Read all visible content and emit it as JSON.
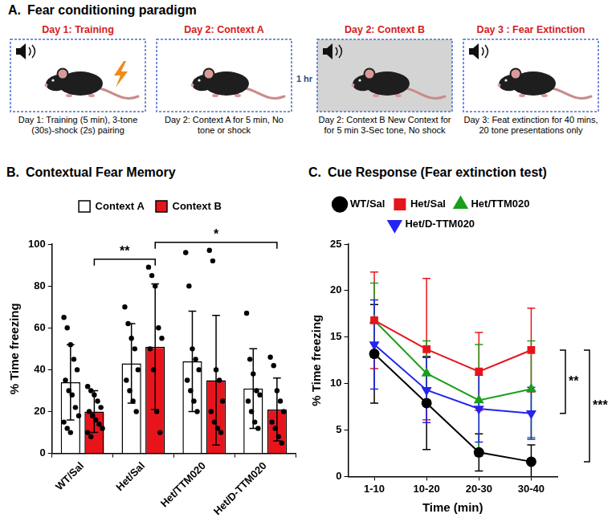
{
  "panel_a": {
    "panel_label": "A.",
    "title": "Fear conditioning paradigm",
    "steps": [
      {
        "heading": "Day 1: Training",
        "caption": "Day 1: Training (5 min), 3-tone (30s)-shock (2s) pairing",
        "tone": true,
        "shock": true,
        "color": "#ffffff"
      },
      {
        "heading": "Day 2: Context A",
        "caption": "Day 2: Context A for 5 min, No tone or shock",
        "tone": false,
        "shock": false,
        "color": "#ffffff"
      },
      {
        "interval": "1 hr"
      },
      {
        "heading": "Day 2: Context B",
        "caption": "Day 2: Context B New Context for for 5 min 3-Sec tone, No shock",
        "tone": true,
        "shock": false,
        "color": "#d4d4d4"
      },
      {
        "heading": "Day 3 : Fear Extinction",
        "caption": "Day 3: Feat extinction for 40 mins, 20 tone presentations only",
        "tone": true,
        "shock": false,
        "color": "#ffffff"
      }
    ]
  },
  "chart_data": [
    {
      "type": "bar",
      "panel_label": "B.",
      "title": "Contextual Fear Memory",
      "categories": [
        "WT/Sal",
        "Het/Sal",
        "Het/TTM020",
        "Het/D-TTM020"
      ],
      "series": [
        {
          "name": "Context A",
          "color": "#ffffff",
          "values": [
            34,
            43,
            44,
            31
          ],
          "errors": [
            18,
            19,
            24,
            19
          ],
          "points": [
            [
              65,
              60,
              52,
              45,
              40,
              35,
              30,
              28,
              22,
              18,
              15,
              12,
              10
            ],
            [
              70,
              62,
              55,
              50,
              40,
              35,
              30,
              25,
              20
            ],
            [
              96,
              80,
              50,
              45,
              40,
              35,
              30,
              25,
              20
            ],
            [
              67,
              45,
              38,
              30,
              28,
              25,
              20,
              15,
              12
            ]
          ]
        },
        {
          "name": "Context B",
          "color": "#e8141c",
          "values": [
            20,
            51,
            35,
            21
          ],
          "errors": [
            10,
            30,
            31,
            15
          ],
          "points": [
            [
              32,
              30,
              28,
              25,
              22,
              20,
              18,
              16,
              14,
              12,
              10,
              8
            ],
            [
              89,
              85,
              80,
              60,
              55,
              50,
              40,
              20,
              10
            ],
            [
              97,
              92,
              40,
              35,
              25,
              20,
              15,
              12,
              10
            ],
            [
              46,
              42,
              30,
              25,
              20,
              15,
              12,
              8,
              5
            ]
          ]
        }
      ],
      "y_label": "% Time freezing",
      "ylim": [
        0,
        100
      ],
      "yticks": [
        0,
        20,
        40,
        60,
        80,
        100
      ],
      "grid": false,
      "legend": "top",
      "annotations": [
        {
          "label": "**",
          "from": {
            "category": "WT/Sal",
            "series": "Context B"
          },
          "to": {
            "category": "Het/Sal",
            "series": "Context B"
          }
        },
        {
          "label": "*",
          "from": {
            "category": "Het/Sal",
            "series": "Context B"
          },
          "to": {
            "category": "Het/D-TTM020",
            "series": "Context B"
          }
        }
      ]
    },
    {
      "type": "line",
      "panel_label": "C.",
      "title": "Cue Response (Fear extinction test)",
      "categories": [
        "1-10",
        "10-20",
        "20-30",
        "30-40"
      ],
      "series": [
        {
          "name": "WT/Sal",
          "color": "#000000",
          "marker": "circle",
          "values": [
            13.2,
            7.9,
            2.6,
            1.6
          ],
          "errors": [
            5.3,
            5,
            2,
            1.8
          ]
        },
        {
          "name": "Het/Sal",
          "color": "#e8141c",
          "marker": "square",
          "values": [
            16.8,
            13.7,
            11.3,
            13.6
          ],
          "errors": [
            5.2,
            7.6,
            4.2,
            4.5
          ]
        },
        {
          "name": "Het/TTM020",
          "color": "#1a9e1a",
          "marker": "triangle",
          "values": [
            16.8,
            11.1,
            8.2,
            9.4
          ],
          "errors": [
            4,
            3.5,
            6,
            5.2
          ]
        },
        {
          "name": "Het/D-TTM020",
          "color": "#2424f0",
          "marker": "triangle-down",
          "values": [
            14.2,
            9.3,
            7.3,
            6.8
          ],
          "errors": [
            4.8,
            3.5,
            3.6,
            2.8
          ]
        }
      ],
      "x_label": "Time (min)",
      "y_label": "% Time freezing",
      "ylim": [
        0,
        25
      ],
      "yticks": [
        0,
        5,
        10,
        15,
        20,
        25
      ],
      "grid": false,
      "legend": "top",
      "annotations": [
        {
          "label": "**",
          "between": [
            "Het/Sal",
            "Het/D-TTM020"
          ]
        },
        {
          "label": "***",
          "between": [
            "Het/Sal",
            "WT/Sal"
          ]
        }
      ]
    }
  ]
}
